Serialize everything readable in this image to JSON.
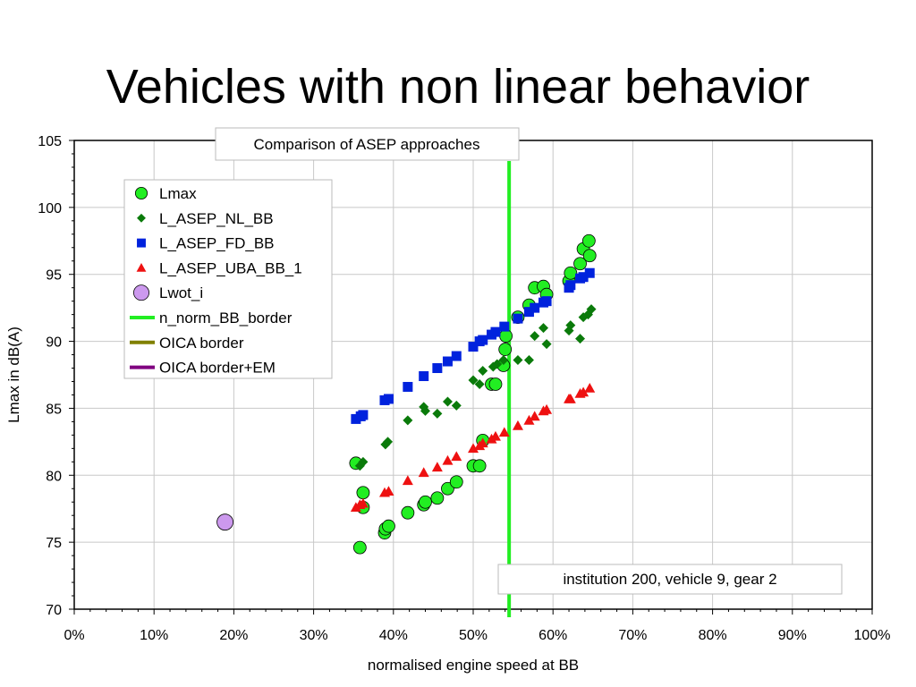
{
  "slide": {
    "title": "Vehicles with non linear behavior"
  },
  "chart_data": {
    "type": "scatter",
    "title": "Comparison of ASEP approaches",
    "annotation": "institution 200, vehicle 9, gear 2",
    "xlabel": "normalised engine speed at BB",
    "ylabel": "Lmax in dB(A)",
    "xlim": [
      0,
      100
    ],
    "ylim": [
      70,
      105
    ],
    "x_ticks": [
      "0%",
      "10%",
      "20%",
      "30%",
      "40%",
      "50%",
      "60%",
      "70%",
      "80%",
      "90%",
      "100%"
    ],
    "y_ticks": [
      "70",
      "75",
      "80",
      "85",
      "90",
      "95",
      "100",
      "105"
    ],
    "grid": true,
    "legend_position": "top-left",
    "series": [
      {
        "name": "Lmax",
        "marker": "circle",
        "color": "#22ee22",
        "points": [
          [
            35.3,
            80.9
          ],
          [
            35.8,
            74.6
          ],
          [
            36.2,
            77.6
          ],
          [
            36.2,
            78.7
          ],
          [
            38.9,
            75.7
          ],
          [
            39,
            76
          ],
          [
            39.4,
            76.2
          ],
          [
            41.8,
            77.2
          ],
          [
            43.8,
            77.8
          ],
          [
            44,
            78
          ],
          [
            45.5,
            78.3
          ],
          [
            46.8,
            79
          ],
          [
            47.9,
            79.5
          ],
          [
            50,
            80.7
          ],
          [
            50.8,
            80.7
          ],
          [
            51.2,
            82.6
          ],
          [
            52.3,
            86.8
          ],
          [
            52.8,
            86.8
          ],
          [
            53.8,
            88.2
          ],
          [
            54,
            89.4
          ],
          [
            54.1,
            90.4
          ],
          [
            55.6,
            91.8
          ],
          [
            57,
            92.7
          ],
          [
            57.7,
            94
          ],
          [
            58.8,
            94.1
          ],
          [
            59.2,
            93.5
          ],
          [
            62,
            94.5
          ],
          [
            62.2,
            95.1
          ],
          [
            63.4,
            95.8
          ],
          [
            63.8,
            96.9
          ],
          [
            64.5,
            97.5
          ],
          [
            64.6,
            96.4
          ]
        ]
      },
      {
        "name": "L_ASEP_NL_BB",
        "marker": "diamond",
        "color": "#0a7a0a",
        "points": [
          [
            35.8,
            80.7
          ],
          [
            36.2,
            81
          ],
          [
            39,
            82.3
          ],
          [
            39.3,
            82.5
          ],
          [
            41.8,
            84.1
          ],
          [
            43.8,
            85.1
          ],
          [
            44,
            84.8
          ],
          [
            45.5,
            84.6
          ],
          [
            46.8,
            85.5
          ],
          [
            47.9,
            85.2
          ],
          [
            50,
            87.1
          ],
          [
            50.8,
            86.8
          ],
          [
            51.2,
            87.8
          ],
          [
            52.5,
            88.1
          ],
          [
            53,
            88.3
          ],
          [
            53.8,
            88.6
          ],
          [
            55.6,
            88.6
          ],
          [
            57,
            88.6
          ],
          [
            57.7,
            90.4
          ],
          [
            58.8,
            91
          ],
          [
            59.2,
            89.8
          ],
          [
            62,
            90.8
          ],
          [
            62.2,
            91.2
          ],
          [
            63.4,
            90.2
          ],
          [
            63.8,
            91.8
          ],
          [
            64.4,
            92
          ],
          [
            64.8,
            92.4
          ]
        ]
      },
      {
        "name": "L_ASEP_FD_BB",
        "marker": "square",
        "color": "#0022dd",
        "points": [
          [
            35.3,
            84.2
          ],
          [
            35.9,
            84.4
          ],
          [
            36.2,
            84.5
          ],
          [
            38.9,
            85.6
          ],
          [
            39.4,
            85.7
          ],
          [
            41.8,
            86.6
          ],
          [
            43.8,
            87.4
          ],
          [
            45.5,
            88
          ],
          [
            46.8,
            88.5
          ],
          [
            47.9,
            88.9
          ],
          [
            50,
            89.6
          ],
          [
            50.8,
            90
          ],
          [
            51.2,
            90.1
          ],
          [
            52.3,
            90.5
          ],
          [
            52.8,
            90.7
          ],
          [
            53.9,
            91.1
          ],
          [
            55.6,
            91.7
          ],
          [
            57,
            92.2
          ],
          [
            57.7,
            92.5
          ],
          [
            58.8,
            92.9
          ],
          [
            59.2,
            93
          ],
          [
            62,
            94
          ],
          [
            62.2,
            94.2
          ],
          [
            63.4,
            94.7
          ],
          [
            63.8,
            94.8
          ],
          [
            64.6,
            95.1
          ]
        ]
      },
      {
        "name": "L_ASEP_UBA_BB_1",
        "marker": "triangle",
        "color": "#ee1111",
        "points": [
          [
            35.3,
            77.6
          ],
          [
            35.8,
            77.8
          ],
          [
            36.2,
            77.9
          ],
          [
            38.9,
            78.7
          ],
          [
            39.4,
            78.8
          ],
          [
            41.8,
            79.6
          ],
          [
            43.8,
            80.2
          ],
          [
            45.5,
            80.6
          ],
          [
            46.8,
            81.1
          ],
          [
            47.9,
            81.4
          ],
          [
            50,
            82
          ],
          [
            50.8,
            82.2
          ],
          [
            51.2,
            82.4
          ],
          [
            52.3,
            82.7
          ],
          [
            52.8,
            82.9
          ],
          [
            53.9,
            83.2
          ],
          [
            55.6,
            83.7
          ],
          [
            57,
            84.1
          ],
          [
            57.7,
            84.4
          ],
          [
            58.8,
            84.8
          ],
          [
            59.2,
            84.9
          ],
          [
            62,
            85.7
          ],
          [
            62.2,
            85.7
          ],
          [
            63.4,
            86.1
          ],
          [
            63.8,
            86.2
          ],
          [
            64.6,
            86.5
          ]
        ]
      },
      {
        "name": "Lwot_i",
        "marker": "circle",
        "color": "#cc99ee",
        "points": [
          [
            18.9,
            76.5
          ]
        ]
      }
    ],
    "lines": [
      {
        "name": "n_norm_BB_border",
        "color": "#22ee22",
        "x": 54.5
      },
      {
        "name": "OICA border",
        "color": "#808000"
      },
      {
        "name": "OICA border+EM",
        "color": "#800080"
      }
    ]
  }
}
